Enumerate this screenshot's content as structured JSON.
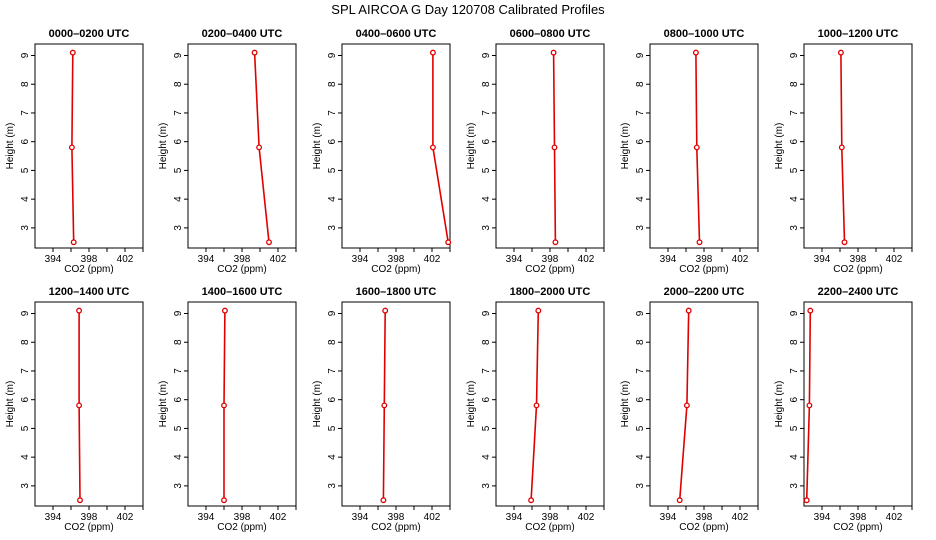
{
  "chart_data": {
    "type": "line",
    "title": "SPL AIRCOA G  Day 120708  Calibrated Profiles",
    "xlabel": "CO2 (ppm)",
    "ylabel": "Height (m)",
    "xlim": [
      392,
      404
    ],
    "ylim": [
      2.3,
      9.4
    ],
    "xticks": [
      394,
      396,
      398,
      400,
      402,
      404
    ],
    "xtick_labels": [
      "394",
      "",
      "398",
      "",
      "402",
      ""
    ],
    "yticks": [
      3,
      4,
      5,
      6,
      7,
      8,
      9
    ],
    "heights": [
      2.5,
      5.8,
      9.1
    ],
    "colors": {
      "series": "#e00000"
    },
    "panels": [
      {
        "title": "0000–0200 UTC",
        "co2": [
          396.3,
          396.1,
          396.2
        ]
      },
      {
        "title": "0200–0400 UTC",
        "co2": [
          401.0,
          399.9,
          399.4
        ]
      },
      {
        "title": "0400–0600 UTC",
        "co2": [
          403.8,
          402.1,
          402.1
        ]
      },
      {
        "title": "0600–0800 UTC",
        "co2": [
          398.6,
          398.5,
          398.4
        ]
      },
      {
        "title": "0800–1000 UTC",
        "co2": [
          397.5,
          397.2,
          397.1
        ]
      },
      {
        "title": "1000–1200 UTC",
        "co2": [
          396.5,
          396.2,
          396.1
        ]
      },
      {
        "title": "1200–1400 UTC",
        "co2": [
          397.0,
          396.9,
          396.9
        ]
      },
      {
        "title": "1400–1600 UTC",
        "co2": [
          396.0,
          396.0,
          396.1
        ]
      },
      {
        "title": "1600–1800 UTC",
        "co2": [
          396.6,
          396.7,
          396.8
        ]
      },
      {
        "title": "1800–2000 UTC",
        "co2": [
          395.9,
          396.5,
          396.7
        ]
      },
      {
        "title": "2000–2200 UTC",
        "co2": [
          395.3,
          396.1,
          396.3
        ]
      },
      {
        "title": "2200–2400 UTC",
        "co2": [
          392.3,
          392.6,
          392.7
        ]
      }
    ]
  }
}
